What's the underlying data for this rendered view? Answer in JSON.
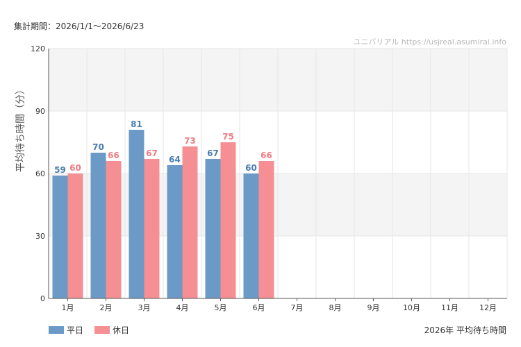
{
  "header": {
    "period_label": "集計期間：2026/1/1～2026/6/23",
    "watermark": "ユニバリアル  https://usjreal.asumirai.info"
  },
  "footer": {
    "caption": "2026年 平均待ち時間"
  },
  "colors": {
    "weekday": "#6b9ac6",
    "weekday_label": "#4a7db0",
    "holiday": "#f58f93",
    "holiday_label": "#ee7d82"
  },
  "chart_data": {
    "type": "bar",
    "title": "",
    "xlabel": "",
    "ylabel": "平均待ち時間（分）",
    "ylim": [
      0,
      120
    ],
    "yticks": [
      0,
      30,
      60,
      90,
      120
    ],
    "grid": true,
    "legend_position": "bottom-left",
    "categories": [
      "1月",
      "2月",
      "3月",
      "4月",
      "5月",
      "6月",
      "7月",
      "8月",
      "9月",
      "10月",
      "11月",
      "12月"
    ],
    "series": [
      {
        "name": "平日",
        "values": [
          59,
          70,
          81,
          64,
          67,
          60,
          null,
          null,
          null,
          null,
          null,
          null
        ]
      },
      {
        "name": "休日",
        "values": [
          60,
          66,
          67,
          73,
          75,
          66,
          null,
          null,
          null,
          null,
          null,
          null
        ]
      }
    ]
  }
}
